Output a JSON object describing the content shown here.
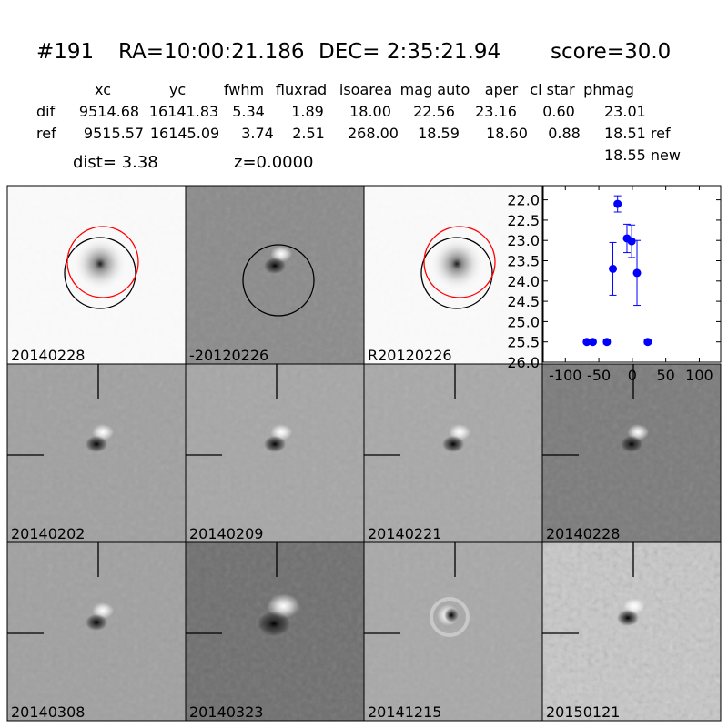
{
  "header": {
    "id": "#191",
    "ra": "RA=10:00:21.186",
    "dec": "DEC= 2:35:21.94",
    "score": "score=30.0"
  },
  "table": {
    "columns": [
      "xc",
      "yc",
      "fwhm",
      "fluxrad",
      "isoarea",
      "mag auto",
      "aper",
      "cl star",
      "phmag"
    ],
    "rows": [
      {
        "label": "dif",
        "cells": [
          "9514.68",
          "16141.83",
          "5.34",
          "1.89",
          "18.00",
          "22.56",
          "23.16",
          "0.60",
          "23.01"
        ]
      },
      {
        "label": "ref",
        "cells": [
          "9515.57",
          "16145.09",
          "3.74",
          "2.51",
          "268.00",
          "18.59",
          "18.60",
          "0.88",
          "18.51 ref"
        ]
      }
    ],
    "extra": "18.55 new"
  },
  "dist": "dist=  3.38",
  "z": "z=0.0000",
  "panels": [
    "20140228",
    "-20120226",
    "R20120226",
    "20140202",
    "20140209",
    "20140221",
    "20140228",
    "20140308",
    "20140323",
    "20141215",
    "20150121"
  ],
  "chart_data": {
    "type": "scatter",
    "xlim": [
      -133,
      132
    ],
    "ylim": [
      21.65,
      26.0
    ],
    "y_inverted": true,
    "xticks": [
      -100,
      -50,
      0,
      50,
      100
    ],
    "yticks": [
      {
        "value": 22,
        "label": "22.0"
      },
      {
        "value": 22.5,
        "label": "22.5"
      },
      {
        "value": 23,
        "label": "23.0"
      },
      {
        "value": 23.5,
        "label": "23.5"
      },
      {
        "value": 24,
        "label": "24.0"
      },
      {
        "value": 24.5,
        "label": "24.5"
      },
      {
        "value": 25,
        "label": "25.0"
      },
      {
        "value": 25.5,
        "label": "25.5"
      },
      {
        "value": 26,
        "label": "26.0"
      }
    ],
    "series": [
      {
        "color": "#0000ff",
        "x": [
          -68,
          -59,
          -38,
          -29,
          -22,
          -8,
          -1,
          7,
          23
        ],
        "values": [
          25.5,
          25.5,
          25.5,
          23.7,
          22.1,
          22.95,
          23.02,
          23.8,
          25.5
        ],
        "errors": [
          0.03,
          0.03,
          0.05,
          0.65,
          0.2,
          0.35,
          0.4,
          0.8,
          0.05
        ]
      }
    ]
  }
}
